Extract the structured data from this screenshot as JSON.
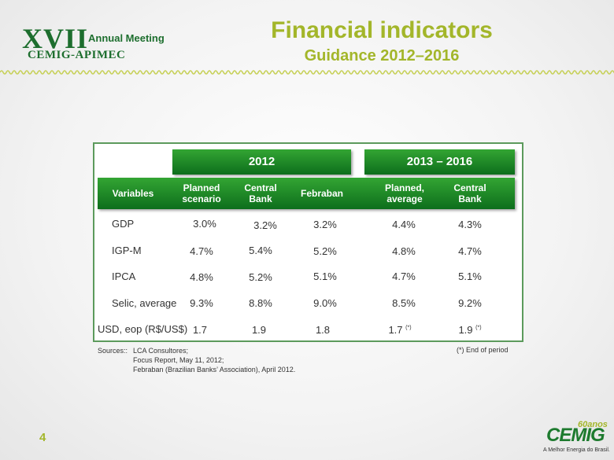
{
  "header": {
    "event_roman": "XVII",
    "event_name": "Annual Meeting",
    "event_org": "CEMIG-APIMEC",
    "title": "Financial indicators",
    "subtitle": "Guidance 2012–2016"
  },
  "table": {
    "year_groups": [
      "2012",
      "2013 – 2016"
    ],
    "columns": [
      "Variables",
      "Planned scenario",
      "Central Bank",
      "Febraban",
      "Planned, average",
      "Central Bank"
    ],
    "rows": [
      {
        "label": "GDP",
        "values": [
          "3.0%",
          "3.2%",
          "3.2%",
          "4.4%",
          "4.3%"
        ]
      },
      {
        "label": "IGP-M",
        "values": [
          "4.7%",
          "5.4%",
          "5.2%",
          "4.8%",
          "4.7%"
        ]
      },
      {
        "label": "IPCA",
        "values": [
          "4.8%",
          "5.2%",
          "5.1%",
          "4.7%",
          "5.1%"
        ]
      },
      {
        "label": "Selic, average",
        "values": [
          "9.3%",
          "8.8%",
          "9.0%",
          "8.5%",
          "9.2%"
        ]
      },
      {
        "label": "USD, eop (R$/US$)",
        "values": [
          "1.7",
          "1.9",
          "1.8",
          "1.7",
          "1.9"
        ]
      }
    ],
    "footnote_marker": "(*)"
  },
  "sources": {
    "label": "Sources::",
    "lines": [
      "LCA Consultores;",
      "Focus Report, May 11, 2012;",
      "Febraban (Brazilian Banks’ Association), April 2012."
    ]
  },
  "end_note": "(*) End of period",
  "page_number": "4",
  "brand": {
    "name": "CEMIG",
    "anniversary": "60anos",
    "tagline": "A Melhor Energia do Brasil."
  },
  "colors": {
    "accent": "#a3b62a",
    "brand_green": "#1d6e2e",
    "bar_green": "#1f8a2a"
  }
}
